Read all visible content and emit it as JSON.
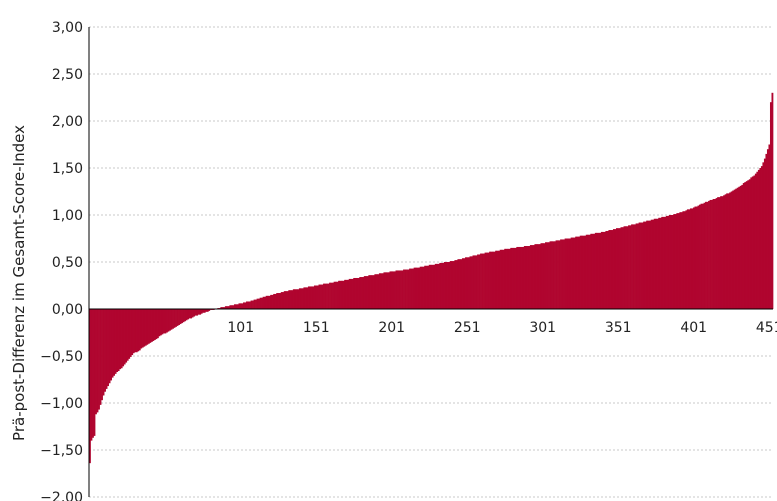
{
  "chart_data": {
    "type": "bar",
    "title": "",
    "xlabel": "",
    "ylabel": "Prä-post-Differenz im Gesamt-Score-Index",
    "ylim": [
      -2,
      3
    ],
    "y_tick_labels": [
      "3,00",
      "2,50",
      "2,00",
      "1,50",
      "1,00",
      "0,50",
      "0,00",
      "−0,50",
      "−1,00",
      "−1,50",
      "−2,00"
    ],
    "x_tick_labels": [
      "101",
      "151",
      "201",
      "251",
      "301",
      "351",
      "401",
      "451"
    ],
    "n": 453,
    "x": [
      1,
      453
    ],
    "y_anchors": [
      [
        1,
        -1.64
      ],
      [
        2,
        -1.4
      ],
      [
        4,
        -1.35
      ],
      [
        5,
        -1.12
      ],
      [
        7,
        -1.07
      ],
      [
        9,
        -0.97
      ],
      [
        11,
        -0.88
      ],
      [
        13,
        -0.82
      ],
      [
        15,
        -0.76
      ],
      [
        17,
        -0.71
      ],
      [
        19,
        -0.67
      ],
      [
        22,
        -0.63
      ],
      [
        25,
        -0.57
      ],
      [
        28,
        -0.51
      ],
      [
        30,
        -0.47
      ],
      [
        33,
        -0.45
      ],
      [
        36,
        -0.41
      ],
      [
        40,
        -0.37
      ],
      [
        44,
        -0.33
      ],
      [
        48,
        -0.28
      ],
      [
        52,
        -0.25
      ],
      [
        56,
        -0.21
      ],
      [
        60,
        -0.17
      ],
      [
        65,
        -0.12
      ],
      [
        70,
        -0.08
      ],
      [
        75,
        -0.05
      ],
      [
        80,
        -0.02
      ],
      [
        84,
        0.0
      ],
      [
        89,
        0.02
      ],
      [
        95,
        0.04
      ],
      [
        101,
        0.06
      ],
      [
        111,
        0.1
      ],
      [
        121,
        0.15
      ],
      [
        131,
        0.19
      ],
      [
        141,
        0.22
      ],
      [
        151,
        0.25
      ],
      [
        161,
        0.28
      ],
      [
        171,
        0.31
      ],
      [
        181,
        0.34
      ],
      [
        191,
        0.37
      ],
      [
        201,
        0.4
      ],
      [
        211,
        0.42
      ],
      [
        221,
        0.45
      ],
      [
        231,
        0.48
      ],
      [
        241,
        0.51
      ],
      [
        251,
        0.55
      ],
      [
        261,
        0.59
      ],
      [
        271,
        0.62
      ],
      [
        281,
        0.65
      ],
      [
        291,
        0.67
      ],
      [
        301,
        0.7
      ],
      [
        311,
        0.73
      ],
      [
        321,
        0.76
      ],
      [
        331,
        0.79
      ],
      [
        341,
        0.82
      ],
      [
        351,
        0.86
      ],
      [
        361,
        0.9
      ],
      [
        371,
        0.94
      ],
      [
        381,
        0.98
      ],
      [
        391,
        1.02
      ],
      [
        401,
        1.08
      ],
      [
        411,
        1.15
      ],
      [
        421,
        1.21
      ],
      [
        426,
        1.25
      ],
      [
        431,
        1.3
      ],
      [
        436,
        1.36
      ],
      [
        441,
        1.42
      ],
      [
        446,
        1.52
      ],
      [
        448,
        1.6
      ],
      [
        450,
        1.7
      ],
      [
        451,
        1.75
      ],
      [
        452,
        2.2
      ],
      [
        453,
        2.3
      ]
    ],
    "grid": true,
    "legend": false,
    "colors": {
      "bar": "#b0052f",
      "grid": "#c8c8c8",
      "axis": "#000000",
      "text": "#222222"
    }
  }
}
